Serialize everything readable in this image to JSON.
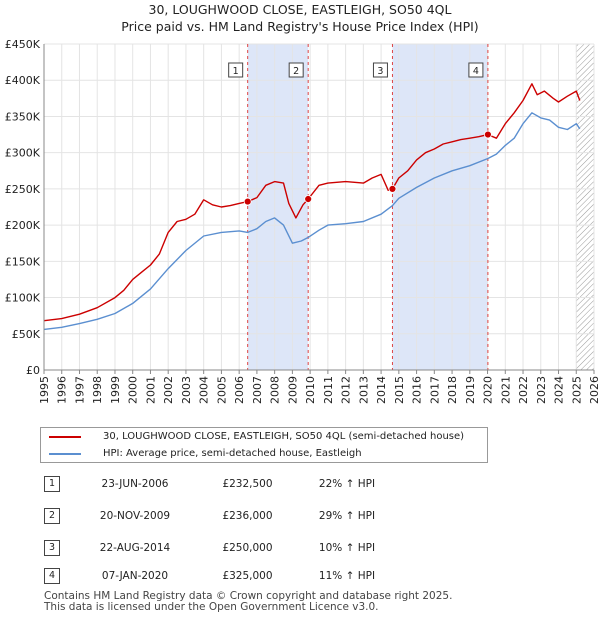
{
  "title_line1": "30, LOUGHWOOD CLOSE, EASTLEIGH, SO50 4QL",
  "title_line2": "Price paid vs. HM Land Registry's House Price Index (HPI)",
  "colors": {
    "property": "#cc0000",
    "hpi": "#5b8fd0",
    "shade": "#dde6f8",
    "marker_line": "#dd4444",
    "grid": "#e4e4e4"
  },
  "chart_data": {
    "type": "line",
    "xlim": [
      1995,
      2026
    ],
    "ylim": [
      0,
      450000
    ],
    "x_ticks": [
      "1995",
      "1996",
      "1997",
      "1998",
      "1999",
      "2000",
      "2001",
      "2002",
      "2003",
      "2004",
      "2005",
      "2006",
      "2007",
      "2008",
      "2009",
      "2010",
      "2011",
      "2012",
      "2013",
      "2014",
      "2015",
      "2016",
      "2017",
      "2018",
      "2019",
      "2020",
      "2021",
      "2022",
      "2023",
      "2024",
      "2025",
      "2026"
    ],
    "y_ticks": [
      {
        "value": 0,
        "label": "£0"
      },
      {
        "value": 50000,
        "label": "£50K"
      },
      {
        "value": 100000,
        "label": "£100K"
      },
      {
        "value": 150000,
        "label": "£150K"
      },
      {
        "value": 200000,
        "label": "£200K"
      },
      {
        "value": 250000,
        "label": "£250K"
      },
      {
        "value": 300000,
        "label": "£300K"
      },
      {
        "value": 350000,
        "label": "£350K"
      },
      {
        "value": 400000,
        "label": "£400K"
      },
      {
        "value": 450000,
        "label": "£450K"
      }
    ],
    "shaded_ranges": [
      [
        2006.48,
        2009.89
      ],
      [
        2014.64,
        2020.02
      ]
    ],
    "hatched_from": 2025.0,
    "series": [
      {
        "name": "30, LOUGHWOOD CLOSE, EASTLEIGH, SO50 4QL (semi-detached house)",
        "color": "#cc0000",
        "x": [
          1995.0,
          1996.0,
          1997.0,
          1998.0,
          1999.0,
          1999.5,
          2000.0,
          2000.5,
          2001.0,
          2001.5,
          2002.0,
          2002.5,
          2003.0,
          2003.5,
          2004.0,
          2004.5,
          2005.0,
          2005.5,
          2006.0,
          2006.48,
          2007.0,
          2007.5,
          2008.0,
          2008.5,
          2008.8,
          2009.2,
          2009.6,
          2009.89,
          2010.5,
          2011.0,
          2012.0,
          2013.0,
          2013.5,
          2014.0,
          2014.4,
          2014.64,
          2015.0,
          2015.5,
          2016.0,
          2016.5,
          2017.0,
          2017.5,
          2018.0,
          2018.5,
          2019.0,
          2019.5,
          2020.02,
          2020.5,
          2021.0,
          2021.5,
          2022.0,
          2022.5,
          2022.8,
          2023.2,
          2023.7,
          2024.0,
          2024.5,
          2025.0,
          2025.2
        ],
        "y": [
          68000,
          71000,
          77000,
          86000,
          100000,
          110000,
          125000,
          135000,
          145000,
          160000,
          190000,
          205000,
          208000,
          215000,
          235000,
          228000,
          225000,
          227000,
          230000,
          232500,
          238000,
          255000,
          260000,
          258000,
          230000,
          210000,
          228000,
          236000,
          255000,
          258000,
          260000,
          258000,
          265000,
          270000,
          248000,
          250000,
          265000,
          275000,
          290000,
          300000,
          305000,
          312000,
          315000,
          318000,
          320000,
          322000,
          325000,
          320000,
          340000,
          355000,
          372000,
          395000,
          380000,
          385000,
          375000,
          370000,
          378000,
          385000,
          372000
        ]
      },
      {
        "name": "HPI: Average price, semi-detached house, Eastleigh",
        "color": "#5b8fd0",
        "x": [
          1995.0,
          1996.0,
          1997.0,
          1998.0,
          1999.0,
          2000.0,
          2001.0,
          2002.0,
          2003.0,
          2004.0,
          2005.0,
          2006.0,
          2006.48,
          2007.0,
          2007.5,
          2008.0,
          2008.5,
          2009.0,
          2009.5,
          2009.89,
          2010.5,
          2011.0,
          2012.0,
          2013.0,
          2014.0,
          2014.64,
          2015.0,
          2016.0,
          2017.0,
          2018.0,
          2019.0,
          2020.02,
          2020.5,
          2021.0,
          2021.5,
          2022.0,
          2022.5,
          2023.0,
          2023.5,
          2024.0,
          2024.5,
          2025.0,
          2025.2
        ],
        "y": [
          56000,
          59000,
          64000,
          70000,
          78000,
          92000,
          112000,
          140000,
          165000,
          185000,
          190000,
          192000,
          190000,
          195000,
          205000,
          210000,
          200000,
          175000,
          178000,
          183000,
          193000,
          200000,
          202000,
          205000,
          215000,
          227000,
          237000,
          252000,
          265000,
          275000,
          282000,
          292000,
          298000,
          310000,
          320000,
          340000,
          355000,
          348000,
          345000,
          335000,
          332000,
          340000,
          333000
        ]
      }
    ],
    "sales": [
      {
        "n": "1",
        "x": 2006.48,
        "price": 232500
      },
      {
        "n": "2",
        "x": 2009.89,
        "price": 236000
      },
      {
        "n": "3",
        "x": 2014.64,
        "price": 250000
      },
      {
        "n": "4",
        "x": 2020.02,
        "price": 325000
      }
    ]
  },
  "legend": {
    "property_label": "30, LOUGHWOOD CLOSE, EASTLEIGH, SO50 4QL (semi-detached house)",
    "hpi_label": "HPI: Average price, semi-detached house, Eastleigh"
  },
  "sales_table": [
    {
      "n": "1",
      "date": "23-JUN-2006",
      "price": "£232,500",
      "hpi": "22% ↑ HPI"
    },
    {
      "n": "2",
      "date": "20-NOV-2009",
      "price": "£236,000",
      "hpi": "29% ↑ HPI"
    },
    {
      "n": "3",
      "date": "22-AUG-2014",
      "price": "£250,000",
      "hpi": "10% ↑ HPI"
    },
    {
      "n": "4",
      "date": "07-JAN-2020",
      "price": "£325,000",
      "hpi": "11% ↑ HPI"
    }
  ],
  "footer_line1": "Contains HM Land Registry data © Crown copyright and database right 2025.",
  "footer_line2": "This data is licensed under the Open Government Licence v3.0."
}
